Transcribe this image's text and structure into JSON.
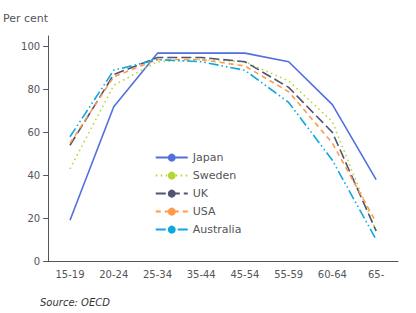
{
  "chart_data": {
    "type": "line",
    "y_label": "Per cent",
    "annotations": [
      "Source: OECD"
    ],
    "categories": [
      "15-19",
      "20-24",
      "25-34",
      "35-44",
      "45-54",
      "55-59",
      "60-64",
      "65-"
    ],
    "series": [
      {
        "name": "Japan",
        "line_style": "solid",
        "values": [
          19,
          72,
          97,
          97,
          97,
          93,
          73,
          38
        ]
      },
      {
        "name": "Sweden",
        "line_style": "dotted",
        "values": [
          43,
          82,
          93,
          94,
          93,
          84,
          65,
          14
        ]
      },
      {
        "name": "UK",
        "line_style": "longdash",
        "values": [
          54,
          87,
          95,
          95,
          93,
          81,
          60,
          14
        ]
      },
      {
        "name": "USA",
        "line_style": "dashed",
        "values": [
          55,
          86,
          94,
          94,
          91,
          79,
          55,
          18
        ]
      },
      {
        "name": "Australia",
        "line_style": "dashdotdot",
        "values": [
          58,
          89,
          94,
          93,
          89,
          74,
          47,
          10
        ]
      }
    ],
    "ylim": [
      0,
      105
    ],
    "yticks": [
      0,
      20,
      40,
      60,
      80,
      100
    ],
    "grid": false,
    "legend": "center"
  }
}
